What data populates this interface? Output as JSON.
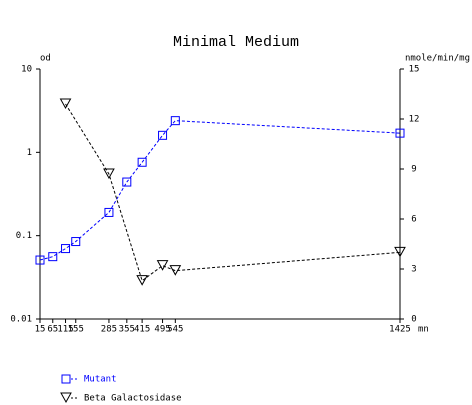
{
  "chart_data": {
    "type": "line",
    "title": "Minimal Medium",
    "y_label": "od",
    "y2_label": "nmole/min/mg",
    "x_label": "mn",
    "xlim": [
      15,
      1425
    ],
    "xticks": [
      15,
      65,
      115,
      155,
      285,
      355,
      415,
      495,
      545,
      1425
    ],
    "ylim": [
      0.01,
      10
    ],
    "yticks": [
      0.01,
      0.1,
      1,
      10
    ],
    "yscale": "log",
    "y2lim": [
      0,
      15
    ],
    "y2ticks": [
      0,
      3,
      6,
      9,
      12,
      15
    ],
    "series": [
      {
        "name": "Mutant",
        "color": "#0000ff",
        "marker": "square",
        "x": [
          15,
          65,
          115,
          155,
          285,
          355,
          415,
          495,
          545,
          1425
        ],
        "values": [
          0.051,
          0.056,
          0.07,
          0.085,
          0.19,
          0.44,
          0.76,
          1.6,
          2.4,
          1.7
        ]
      },
      {
        "name": "Beta Galactosidase",
        "color": "#000000",
        "marker": "triangle",
        "axis": "y2",
        "x": [
          115,
          285,
          415,
          495,
          545,
          1425
        ],
        "values": [
          12.9,
          8.7,
          2.3,
          3.2,
          2.9,
          4.0
        ]
      }
    ]
  }
}
